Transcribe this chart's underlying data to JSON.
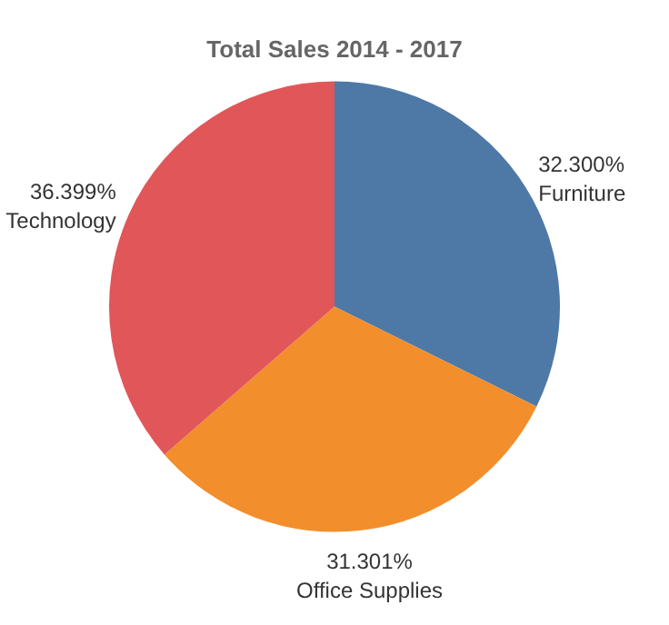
{
  "chart_data": {
    "type": "pie",
    "title": "Total Sales 2014 - 2017",
    "categories": [
      "Furniture",
      "Office Supplies",
      "Technology"
    ],
    "values": [
      32.3,
      31.301,
      36.399
    ],
    "value_labels": [
      "32.300%",
      "31.301%",
      "36.399%"
    ],
    "colors": [
      "#4e79a7",
      "#f28e2b",
      "#e15759"
    ],
    "legend": false
  }
}
